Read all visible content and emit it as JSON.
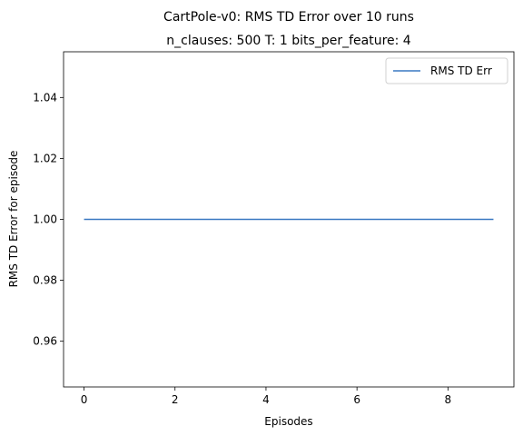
{
  "chart_data": {
    "type": "line",
    "suptitle": "CartPole-v0: RMS TD Error over 10 runs",
    "title": "n_clauses: 500 T: 1 bits_per_feature: 4",
    "xlabel": "Episodes",
    "ylabel": "RMS TD Error for episode",
    "xlim": [
      -0.45,
      9.45
    ],
    "ylim": [
      0.945,
      1.055
    ],
    "xticks": [
      0,
      2,
      4,
      6,
      8
    ],
    "xtick_labels": [
      "0",
      "2",
      "4",
      "6",
      "8"
    ],
    "yticks": [
      0.96,
      0.98,
      1.0,
      1.02,
      1.04
    ],
    "ytick_labels": [
      "0.96",
      "0.98",
      "1.00",
      "1.02",
      "1.04"
    ],
    "grid": false,
    "legend_position": "top-right",
    "series": [
      {
        "name": "RMS TD Err",
        "color": "#3a78c2",
        "x": [
          0,
          1,
          2,
          3,
          4,
          5,
          6,
          7,
          8,
          9
        ],
        "y": [
          1.0,
          1.0,
          1.0,
          1.0,
          1.0,
          1.0,
          1.0,
          1.0,
          1.0,
          1.0
        ]
      }
    ]
  }
}
